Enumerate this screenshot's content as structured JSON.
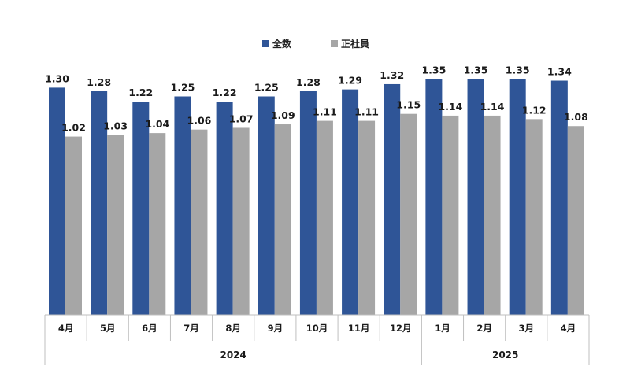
{
  "chart_data": {
    "type": "bar",
    "categories": [
      "4月",
      "5月",
      "6月",
      "7月",
      "8月",
      "9月",
      "10月",
      "11月",
      "12月",
      "1月",
      "2月",
      "3月",
      "4月"
    ],
    "year_groups": [
      {
        "label": "2024",
        "count": 9
      },
      {
        "label": "2025",
        "count": 4
      }
    ],
    "series": [
      {
        "name": "全数",
        "color": "#2F5597",
        "values": [
          1.3,
          1.28,
          1.22,
          1.25,
          1.22,
          1.25,
          1.28,
          1.29,
          1.32,
          1.35,
          1.35,
          1.35,
          1.34
        ]
      },
      {
        "name": "正社員",
        "color": "#A6A6A6",
        "values": [
          1.02,
          1.03,
          1.04,
          1.06,
          1.07,
          1.09,
          1.11,
          1.11,
          1.15,
          1.14,
          1.14,
          1.12,
          1.08
        ]
      }
    ],
    "ylim": [
      0,
      1.35
    ],
    "legend_position": "top-center",
    "grid": false,
    "title": "",
    "xlabel": "",
    "ylabel": ""
  }
}
